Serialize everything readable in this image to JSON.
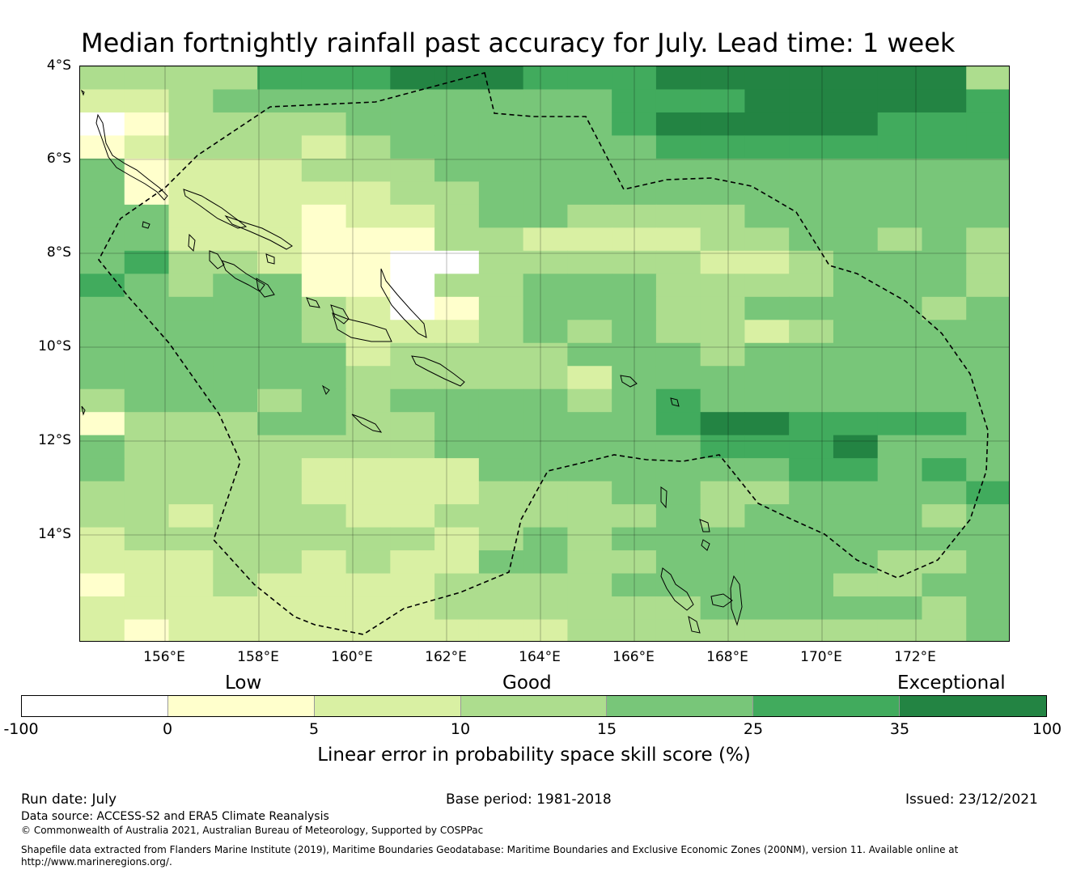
{
  "title": "Median fortnightly rainfall past accuracy for July. Lead time: 1 week",
  "map": {
    "lat_labels": [
      "4°S",
      "6°S",
      "8°S",
      "10°S",
      "12°S",
      "14°S"
    ],
    "lon_labels": [
      "156°E",
      "158°E",
      "160°E",
      "162°E",
      "164°E",
      "166°E",
      "168°E",
      "170°E",
      "172°E"
    ],
    "extent": {
      "lon_min": 154.2,
      "lon_max": 174.0,
      "lat_north": -4.0,
      "lat_south": -16.3
    },
    "eez_boundary_style": "dashed black line",
    "land_style": "black coastline outlines"
  },
  "legend": {
    "categories": [
      "Low",
      "Good",
      "Exceptional"
    ],
    "bins": [
      {
        "from": -100,
        "to": 0,
        "color": "#ffffff"
      },
      {
        "from": 0,
        "to": 5,
        "color": "#ffffcc"
      },
      {
        "from": 5,
        "to": 10,
        "color": "#d9f0a3"
      },
      {
        "from": 10,
        "to": 15,
        "color": "#addd8e"
      },
      {
        "from": 15,
        "to": 25,
        "color": "#78c679"
      },
      {
        "from": 25,
        "to": 35,
        "color": "#41ab5d"
      },
      {
        "from": 35,
        "to": 100,
        "color": "#238443"
      }
    ],
    "tick_labels": [
      "-100",
      "0",
      "5",
      "10",
      "15",
      "25",
      "35",
      "100"
    ],
    "label": "Linear error in probability space skill score (%)"
  },
  "footer": {
    "run_date": "Run date: July",
    "base_period": "Base period: 1981-2018",
    "issued": "Issued: 23/12/2021",
    "data_source": "Data source: ACCESS-S2 and ERA5 Climate Reanalysis",
    "copyright": "© Commonwealth of Australia 2021, Australian Bureau of Meteorology, Supported by COSPPac",
    "shapefile_line1": "Shapefile data extracted from Flanders Marine Institute (2019), Maritime Boundaries Geodatabase: Maritime Boundaries and Exclusive Economic Zones (200NM), version 11. Available online at",
    "shapefile_line2": "http://www.marineregions.org/."
  }
}
